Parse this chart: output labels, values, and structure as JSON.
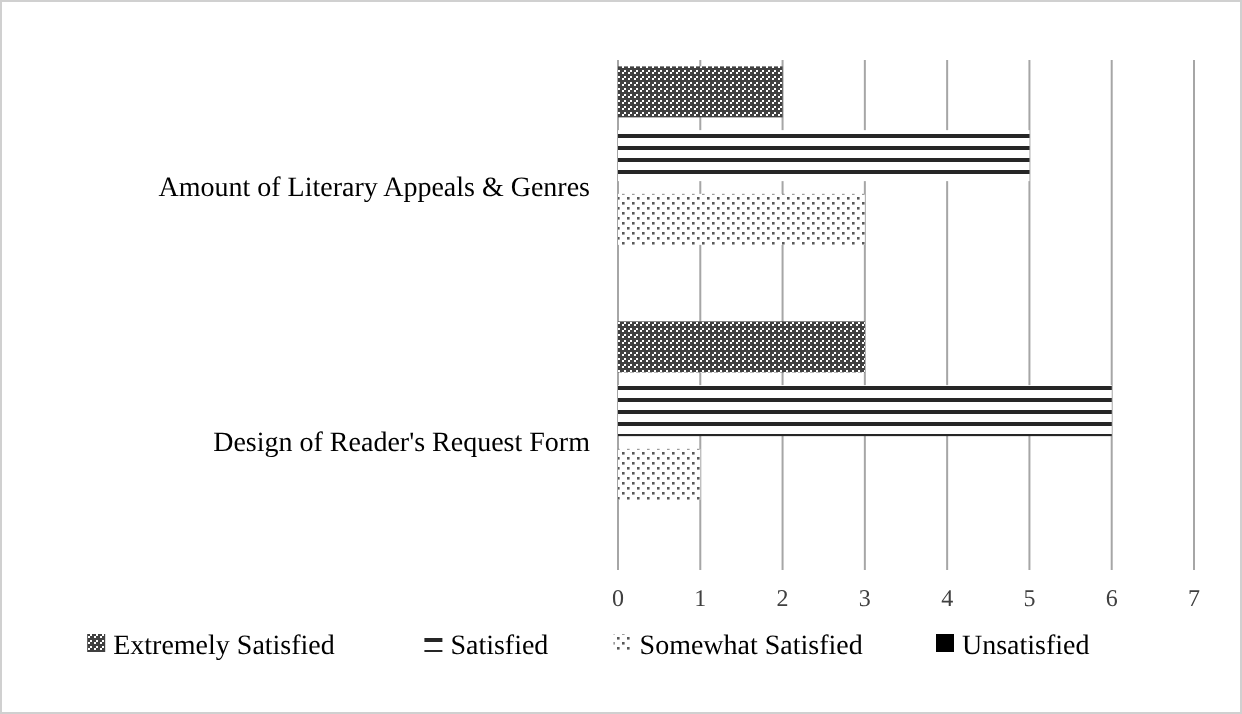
{
  "chart_data": {
    "type": "bar",
    "orientation": "horizontal",
    "categories": [
      "Amount of Literary Appeals & Genres",
      "Design of Reader's Request Form"
    ],
    "series": [
      {
        "name": "Extremely Satisfied",
        "color": "#404040",
        "values": [
          2,
          3
        ]
      },
      {
        "name": "Satisfied",
        "color": "#262626",
        "values": [
          5,
          6
        ]
      },
      {
        "name": "Somewhat Satisfied",
        "color": "#595959",
        "values": [
          3,
          1
        ]
      },
      {
        "name": "Unsatisfied",
        "color": "#000000",
        "values": [
          0,
          0
        ]
      }
    ],
    "xlim": [
      0,
      7
    ],
    "xticks": [
      0,
      1,
      2,
      3,
      4,
      5,
      6,
      7
    ],
    "grid": "x",
    "legend": "bottom"
  }
}
